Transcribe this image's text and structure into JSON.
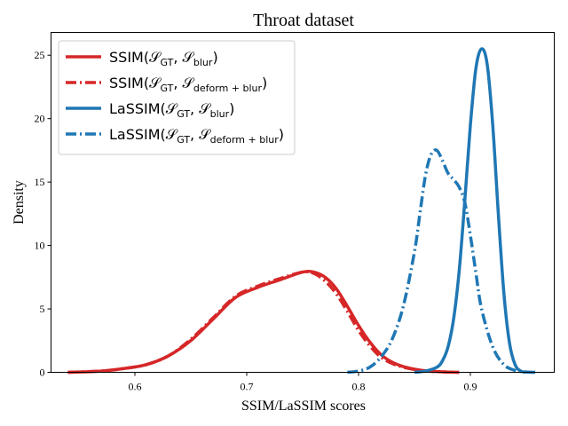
{
  "chart_data": {
    "type": "line",
    "title": "Throat dataset",
    "xlabel": "SSIM/LaSSIM scores",
    "ylabel": "Density",
    "xlim": [
      0.525,
      0.975
    ],
    "ylim": [
      0,
      26.8
    ],
    "x_ticks": [
      "0.6",
      "0.7",
      "0.8",
      "0.9"
    ],
    "x_tick_values": [
      0.6,
      0.7,
      0.8,
      0.9
    ],
    "y_ticks": [
      "0",
      "5",
      "10",
      "15",
      "20",
      "25"
    ],
    "y_tick_values": [
      0,
      5,
      10,
      15,
      20,
      25
    ],
    "grid": false,
    "legend_position": "top-left",
    "series": [
      {
        "name_main": "SSIM(",
        "name_s1": "𝒮",
        "name_sub1": "GT",
        "name_sep": ", ",
        "name_s2": "𝒮",
        "name_sub2": "blur",
        "name_close": ")",
        "color": "#d62728",
        "style": "solid",
        "x": [
          0.54,
          0.57,
          0.59,
          0.61,
          0.63,
          0.65,
          0.67,
          0.69,
          0.71,
          0.73,
          0.75,
          0.76,
          0.77,
          0.78,
          0.79,
          0.8,
          0.81,
          0.82,
          0.83,
          0.84,
          0.85,
          0.86,
          0.87,
          0.88,
          0.89
        ],
        "y": [
          0.0,
          0.1,
          0.3,
          0.6,
          1.3,
          2.5,
          4.2,
          5.9,
          6.7,
          7.3,
          7.9,
          7.9,
          7.5,
          6.6,
          5.2,
          3.7,
          2.4,
          1.4,
          0.8,
          0.45,
          0.25,
          0.12,
          0.06,
          0.02,
          0.0
        ]
      },
      {
        "name_main": "SSIM(",
        "name_s1": "𝒮",
        "name_sub1": "GT",
        "name_sep": ", ",
        "name_s2": "𝒮",
        "name_sub2": "deform + blur",
        "name_close": ")",
        "color": "#d62728",
        "style": "dashdot",
        "x": [
          0.54,
          0.57,
          0.59,
          0.61,
          0.63,
          0.65,
          0.67,
          0.69,
          0.71,
          0.73,
          0.75,
          0.76,
          0.77,
          0.78,
          0.79,
          0.8,
          0.81,
          0.82,
          0.83,
          0.84,
          0.85,
          0.86,
          0.87,
          0.88,
          0.89
        ],
        "y": [
          0.0,
          0.1,
          0.3,
          0.6,
          1.3,
          2.6,
          4.3,
          6.0,
          6.8,
          7.4,
          7.9,
          7.8,
          7.2,
          6.2,
          4.8,
          3.3,
          2.1,
          1.2,
          0.7,
          0.4,
          0.22,
          0.1,
          0.05,
          0.02,
          0.0
        ]
      },
      {
        "name_main": "LaSSIM(",
        "name_s1": "𝒮",
        "name_sub1": "GT",
        "name_sep": ", ",
        "name_s2": "𝒮",
        "name_sub2": "blur",
        "name_close": ")",
        "color": "#1f77b4",
        "style": "solid",
        "x": [
          0.85,
          0.86,
          0.87,
          0.875,
          0.88,
          0.885,
          0.89,
          0.895,
          0.9,
          0.905,
          0.91,
          0.915,
          0.92,
          0.925,
          0.93,
          0.935,
          0.94,
          0.945,
          0.95
        ],
        "y": [
          0.0,
          0.1,
          0.4,
          0.9,
          2.0,
          4.2,
          8.0,
          13.5,
          19.5,
          24.0,
          25.5,
          24.3,
          19.5,
          12.5,
          6.2,
          2.3,
          0.6,
          0.1,
          0.0
        ]
      },
      {
        "name_main": "LaSSIM(",
        "name_s1": "𝒮",
        "name_sub1": "GT",
        "name_sep": ", ",
        "name_s2": "𝒮",
        "name_sub2": "deform + blur",
        "name_close": ")",
        "color": "#1f77b4",
        "style": "dashdot",
        "x": [
          0.79,
          0.8,
          0.81,
          0.82,
          0.83,
          0.84,
          0.85,
          0.855,
          0.86,
          0.865,
          0.87,
          0.875,
          0.88,
          0.885,
          0.89,
          0.895,
          0.9,
          0.905,
          0.91,
          0.92,
          0.93,
          0.94,
          0.95,
          0.96
        ],
        "y": [
          0.0,
          0.1,
          0.4,
          1.2,
          2.6,
          5.2,
          9.5,
          12.6,
          15.6,
          17.2,
          17.5,
          16.7,
          15.7,
          15.2,
          14.6,
          13.4,
          10.8,
          7.8,
          5.0,
          2.0,
          0.6,
          0.15,
          0.03,
          0.0
        ]
      }
    ]
  }
}
